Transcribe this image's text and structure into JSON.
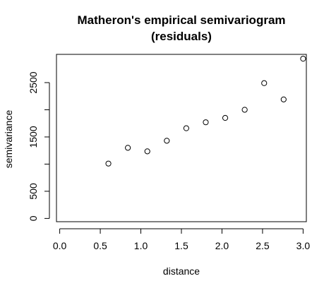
{
  "chart_data": {
    "type": "scatter",
    "title": [
      "Matheron's empirical semivariogram",
      "(residuals)"
    ],
    "xlabel": "distance",
    "ylabel": "semivariance",
    "xlim": [
      -0.04,
      3.04
    ],
    "ylim": [
      -60,
      3020
    ],
    "x_ticks": [
      0.0,
      0.5,
      1.0,
      1.5,
      2.0,
      2.5,
      3.0
    ],
    "x_tick_labels": [
      "0.0",
      "0.5",
      "1.0",
      "1.5",
      "2.0",
      "2.5",
      "3.0"
    ],
    "y_ticks": [
      0,
      500,
      1500,
      2500
    ],
    "y_tick_labels": [
      "0",
      "500",
      "1500",
      "2500"
    ],
    "y_tick_marks": [
      0,
      500,
      1000,
      1500,
      2000,
      2500
    ],
    "grid": false,
    "marker": "open-circle",
    "series": [
      {
        "x": [
          0.6,
          0.84,
          1.08,
          1.32,
          1.56,
          1.8,
          2.04,
          2.28,
          2.52,
          2.76,
          3.0
        ],
        "y": [
          1010,
          1300,
          1235,
          1430,
          1660,
          1770,
          1850,
          2000,
          2490,
          2190,
          2940
        ]
      }
    ]
  }
}
